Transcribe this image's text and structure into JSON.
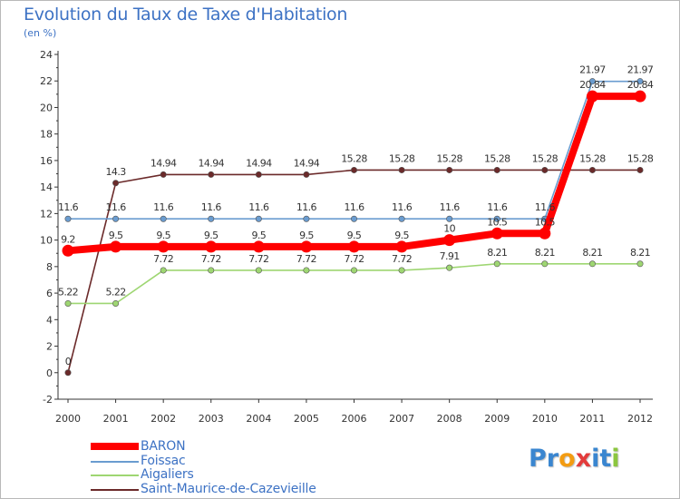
{
  "chart_data": {
    "type": "line",
    "title": "Evolution du Taux de Taxe d'Habitation",
    "subtitle": "(en %)",
    "x": [
      "2000",
      "2001",
      "2002",
      "2003",
      "2004",
      "2005",
      "2006",
      "2007",
      "2008",
      "2009",
      "2010",
      "2011",
      "2012"
    ],
    "ylim": [
      -2,
      24
    ],
    "yticks": [
      -2,
      0,
      2,
      4,
      6,
      8,
      10,
      12,
      14,
      16,
      18,
      20,
      22,
      24
    ],
    "series": [
      {
        "name": "Saint-Maurice-de-Cazevieille",
        "color": "#6b2a2a",
        "values": [
          0,
          14.3,
          14.94,
          14.94,
          14.94,
          14.94,
          15.28,
          15.28,
          15.28,
          15.28,
          15.28,
          15.28,
          15.28
        ],
        "labels": [
          "0",
          "14.3",
          "14.94",
          "14.94",
          "14.94",
          "14.94",
          "15.28",
          "15.28",
          "15.28",
          "15.28",
          "15.28",
          "15.28",
          "15.28"
        ]
      },
      {
        "name": "Foissac",
        "color": "#6a9cd0",
        "values": [
          11.6,
          11.6,
          11.6,
          11.6,
          11.6,
          11.6,
          11.6,
          11.6,
          11.6,
          11.6,
          11.6,
          21.97,
          21.97
        ],
        "labels": [
          "11.6",
          "11.6",
          "11.6",
          "11.6",
          "11.6",
          "11.6",
          "11.6",
          "11.6",
          "11.6",
          "11.6",
          "11.6",
          "21.97",
          "21.97"
        ]
      },
      {
        "name": "Aigaliers",
        "color": "#9ed672",
        "values": [
          5.22,
          5.22,
          7.72,
          7.72,
          7.72,
          7.72,
          7.72,
          7.72,
          7.91,
          8.21,
          8.21,
          8.21,
          8.21
        ],
        "labels": [
          "5.22",
          "5.22",
          "7.72",
          "7.72",
          "7.72",
          "7.72",
          "7.72",
          "7.72",
          "7.91",
          "8.21",
          "8.21",
          "8.21",
          "8.21"
        ]
      },
      {
        "name": "BARON",
        "color": "#ff0000",
        "values": [
          9.2,
          9.5,
          9.5,
          9.5,
          9.5,
          9.5,
          9.5,
          9.5,
          10,
          10.5,
          10.5,
          20.84,
          20.84
        ],
        "labels": [
          "9.2",
          "9.5",
          "9.5",
          "9.5",
          "9.5",
          "9.5",
          "9.5",
          "9.5",
          "10",
          "10.5",
          "10.5",
          "20.84",
          "20.84"
        ]
      }
    ],
    "legend": [
      {
        "name": "BARON",
        "color": "#ff0000",
        "weight": "thick"
      },
      {
        "name": "Foissac",
        "color": "#6a9cd0",
        "weight": "thin"
      },
      {
        "name": "Aigaliers",
        "color": "#9ed672",
        "weight": "thin"
      },
      {
        "name": "Saint-Maurice-de-Cazevieille",
        "color": "#6b2a2a",
        "weight": "thin"
      }
    ],
    "legend_position": "bottom-left",
    "grid": false
  },
  "logo": {
    "text": "Proxiti",
    "letters": [
      {
        "ch": "P",
        "color": "#3a86d0"
      },
      {
        "ch": "r",
        "color": "#3a86d0"
      },
      {
        "ch": "o",
        "color": "#f39c12"
      },
      {
        "ch": "x",
        "color": "#e33b3b"
      },
      {
        "ch": "i",
        "color": "#3a86d0"
      },
      {
        "ch": "t",
        "color": "#3a86d0"
      },
      {
        "ch": "i",
        "color": "#8cc63f"
      }
    ]
  }
}
